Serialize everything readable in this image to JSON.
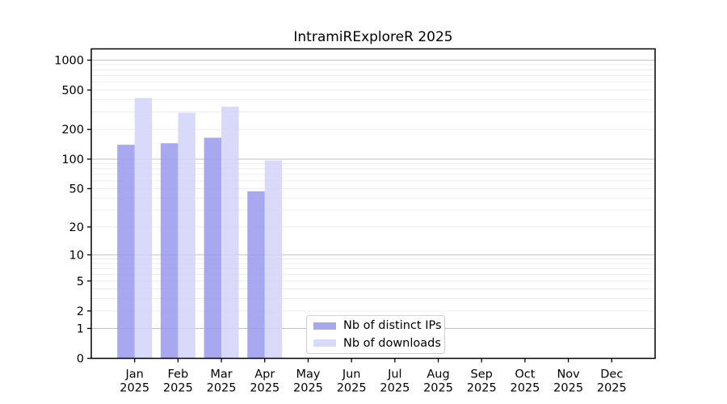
{
  "chart_data": {
    "type": "bar",
    "title": "IntramiRExploreR 2025",
    "xlabel": "",
    "ylabel": "",
    "scale": "log1p",
    "grid": "both",
    "legend_position": "lower center",
    "categories": [
      "Jan 2025",
      "Feb 2025",
      "Mar 2025",
      "Apr 2025",
      "May 2025",
      "Jun 2025",
      "Jul 2025",
      "Aug 2025",
      "Sep 2025",
      "Oct 2025",
      "Nov 2025",
      "Dec 2025"
    ],
    "series": [
      {
        "name": "Nb of distinct IPs",
        "color": "#9999ef",
        "values": [
          140,
          145,
          165,
          47,
          0,
          0,
          0,
          0,
          0,
          0,
          0,
          0
        ]
      },
      {
        "name": "Nb of downloads",
        "color": "#d2d2f8",
        "values": [
          415,
          295,
          340,
          97,
          0,
          0,
          0,
          0,
          0,
          0,
          0,
          0
        ]
      }
    ],
    "yticks": [
      0,
      1,
      2,
      5,
      10,
      20,
      50,
      100,
      200,
      500,
      1000
    ],
    "ylim": [
      0,
      1290
    ],
    "colors": {
      "major_grid": "#c2c2c2",
      "minor_grid": "#ededed",
      "axis": "#000000",
      "tick_label": "#000000"
    }
  }
}
